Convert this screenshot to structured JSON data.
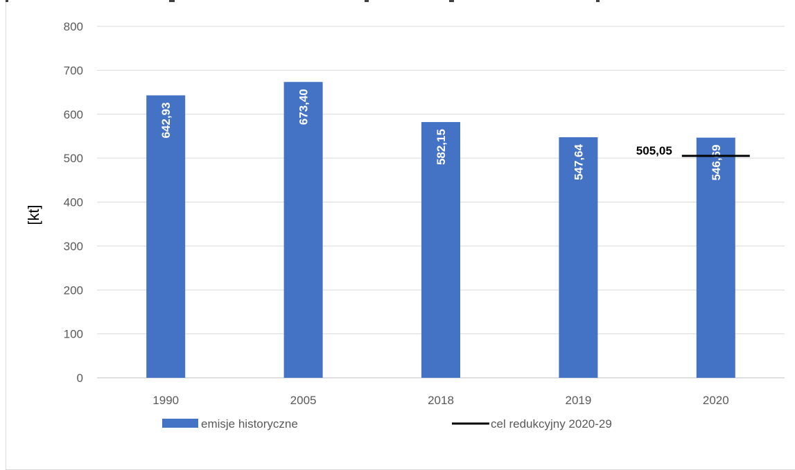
{
  "chart_data": {
    "type": "bar",
    "categories": [
      "1990",
      "2005",
      "2018",
      "2019",
      "2020"
    ],
    "series": [
      {
        "name": "emisje historyczne",
        "values": [
          642.93,
          673.4,
          582.15,
          547.64,
          546.69
        ],
        "value_labels": [
          "642,93",
          "673,40",
          "582,15",
          "547,64",
          "546,69"
        ],
        "color": "#4472c4"
      }
    ],
    "target": {
      "name": "cel redukcyjny 2020-29",
      "category": "2020",
      "value": 505.05,
      "label": "505,05",
      "color": "#000000"
    },
    "ylabel": "[kt]",
    "ylim": [
      0,
      800
    ],
    "yticks": [
      0,
      100,
      200,
      300,
      400,
      500,
      600,
      700,
      800
    ],
    "grid": true,
    "legend_position": "bottom"
  }
}
